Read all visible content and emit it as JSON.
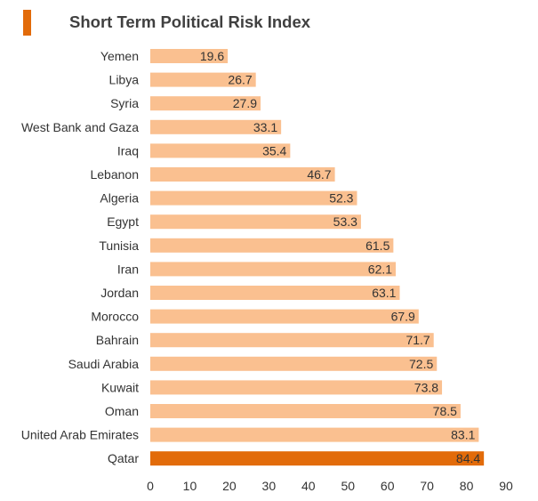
{
  "title": "Short Term Political Risk Index",
  "colors": {
    "accent": "#E26B0A",
    "bar": "#FAC090",
    "highlight_bar": "#E26B0A"
  },
  "chart_data": {
    "type": "bar",
    "orientation": "horizontal",
    "title": "Short Term Political Risk Index",
    "xlabel": "",
    "ylabel": "",
    "categories": [
      "Yemen",
      "Libya",
      "Syria",
      "West Bank and Gaza",
      "Iraq",
      "Lebanon",
      "Algeria",
      "Egypt",
      "Tunisia",
      "Iran",
      "Jordan",
      "Morocco",
      "Bahrain",
      "Saudi Arabia",
      "Kuwait",
      "Oman",
      "United Arab Emirates",
      "Qatar"
    ],
    "values": [
      19.6,
      26.7,
      27.9,
      33.1,
      35.4,
      46.7,
      52.3,
      53.3,
      61.5,
      62.1,
      63.1,
      67.9,
      71.7,
      72.5,
      73.8,
      78.5,
      83.1,
      84.4
    ],
    "value_labels": [
      "19.6",
      "26.7",
      "27.9",
      "33.1",
      "35.4",
      "46.7",
      "52.3",
      "53.3",
      "61.5",
      "62.1",
      "63.1",
      "67.9",
      "71.7",
      "72.5",
      "73.8",
      "78.5",
      "83.1",
      "84.4"
    ],
    "highlighted_category": "Qatar",
    "xlim": [
      0,
      90
    ],
    "xticks": [
      "0",
      "10",
      "20",
      "30",
      "40",
      "50",
      "60",
      "70",
      "80",
      "90"
    ],
    "grid": false,
    "legend": "none"
  }
}
